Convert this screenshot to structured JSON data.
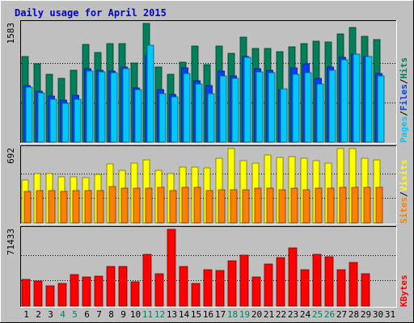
{
  "chart_data": {
    "type": "bar",
    "title": "Daily usage for April 2015",
    "categories": [
      "1",
      "2",
      "3",
      "4",
      "5",
      "6",
      "7",
      "8",
      "9",
      "10",
      "11",
      "12",
      "13",
      "14",
      "15",
      "16",
      "17",
      "18",
      "19",
      "20",
      "21",
      "22",
      "23",
      "24",
      "25",
      "26",
      "27",
      "28",
      "29",
      "30",
      "31"
    ],
    "weekend_days": [
      4,
      5,
      11,
      12,
      18,
      19,
      25,
      26
    ],
    "panels": [
      {
        "id": "hits-files-pages",
        "ymax_label": "1583",
        "ymax": 1583,
        "right_labels": [
          "Pages",
          "/",
          "Files",
          "/",
          "Hits"
        ],
        "series": [
          {
            "name": "Hits",
            "color": "#00805a",
            "values": [
              1140,
              1040,
              900,
              850,
              960,
              1300,
              1190,
              1310,
              1310,
              1060,
              1583,
              1000,
              900,
              1070,
              1280,
              1030,
              1280,
              1180,
              1400,
              1250,
              1250,
              1210,
              1270,
              1310,
              1350,
              1330,
              1440,
              1530,
              1410,
              1370,
              0
            ]
          },
          {
            "name": "Files",
            "color": "#0040ff",
            "values": [
              750,
              680,
              610,
              560,
              620,
              980,
              960,
              950,
              1000,
              720,
              1150,
              700,
              630,
              990,
              820,
              750,
              950,
              880,
              1140,
              980,
              960,
              700,
              990,
              1040,
              850,
              1000,
              1130,
              1170,
              1140,
              920,
              0
            ]
          },
          {
            "name": "Pages",
            "color": "#00c8ff",
            "values": [
              730,
              660,
              570,
              520,
              570,
              950,
              940,
              930,
              980,
              700,
              1290,
              650,
              600,
              910,
              770,
              650,
              880,
              850,
              1130,
              940,
              930,
              710,
              900,
              930,
              780,
              960,
              1100,
              1170,
              1140,
              880,
              0
            ]
          }
        ]
      },
      {
        "id": "visits-sites",
        "ymax_label": "692",
        "ymax": 692,
        "right_labels": [
          "Sites",
          "/",
          "Visits"
        ],
        "series": [
          {
            "name": "Visits",
            "color": "#ffff00",
            "values": [
              400,
              460,
              460,
              430,
              430,
              420,
              450,
              550,
              490,
              560,
              590,
              490,
              460,
              520,
              520,
              510,
              600,
              690,
              580,
              560,
              630,
              610,
              620,
              600,
              580,
              560,
              690,
              690,
              600,
              590,
              0
            ]
          },
          {
            "name": "Sites",
            "color": "#ff8000",
            "values": [
              290,
              300,
              300,
              290,
              300,
              300,
              300,
              340,
              320,
              320,
              320,
              330,
              300,
              330,
              330,
              300,
              310,
              310,
              310,
              320,
              320,
              310,
              320,
              310,
              320,
              320,
              330,
              330,
              330,
              330,
              0
            ]
          }
        ]
      },
      {
        "id": "kbytes",
        "ymax_label": "71433",
        "ymax": 71433,
        "right_labels": [
          "KBytes"
        ],
        "series": [
          {
            "name": "KBytes",
            "color": "#ff0000",
            "values": [
              25000,
              23300,
              18700,
              20800,
              29000,
              27000,
              28000,
              36700,
              36700,
              22500,
              48000,
              30000,
              71433,
              36700,
              20700,
              34000,
              33000,
              42300,
              47600,
              27000,
              39000,
              45400,
              54000,
              33700,
              48000,
              45700,
              33500,
              40800,
              30000,
              0,
              0
            ]
          }
        ]
      }
    ]
  }
}
